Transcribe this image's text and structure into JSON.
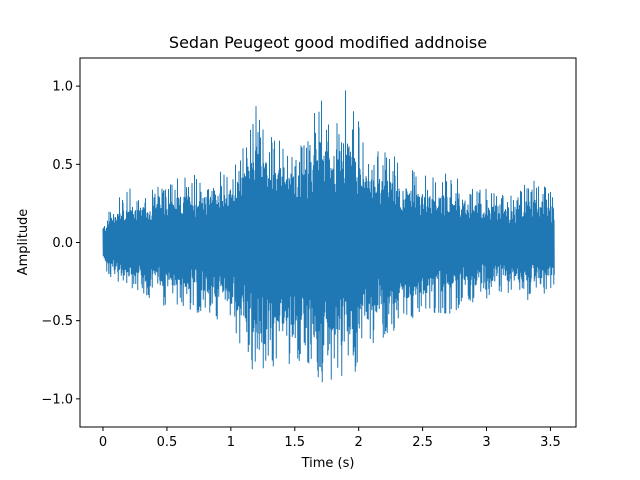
{
  "chart_data": {
    "type": "line",
    "title": "Sedan Peugeot good modified addnoise",
    "xlabel": "Time (s)",
    "ylabel": "Amplitude",
    "xlim": [
      -0.18,
      3.7
    ],
    "ylim": [
      -1.18,
      1.18
    ],
    "x_ticks": [
      0,
      0.5,
      1,
      1.5,
      2,
      2.5,
      3,
      3.5
    ],
    "x_tick_labels": [
      "0",
      "0.5",
      "1",
      "1.5",
      "2",
      "2.5",
      "3",
      "3.5"
    ],
    "y_ticks": [
      -1.0,
      -0.5,
      0.0,
      0.5,
      1.0
    ],
    "y_tick_labels": [
      "−1.0",
      "−0.5",
      "0.0",
      "0.5",
      "1.0"
    ],
    "grid": false,
    "legend": "none",
    "series": [
      {
        "color": "#1f77b4",
        "x_range": [
          0,
          3.53
        ],
        "envelope": {
          "x": [
            0,
            0.1,
            0.2,
            0.3,
            0.4,
            0.5,
            0.6,
            0.7,
            0.8,
            0.9,
            1.0,
            1.1,
            1.2,
            1.3,
            1.4,
            1.5,
            1.6,
            1.7,
            1.75,
            1.8,
            1.9,
            2.0,
            2.1,
            2.2,
            2.3,
            2.4,
            2.5,
            2.6,
            2.7,
            2.8,
            2.9,
            3.0,
            3.1,
            3.2,
            3.3,
            3.4,
            3.53
          ],
          "upper": [
            0.15,
            0.3,
            0.35,
            0.32,
            0.35,
            0.38,
            0.42,
            0.45,
            0.42,
            0.45,
            0.5,
            0.62,
            0.92,
            0.68,
            0.7,
            0.62,
            0.7,
            0.95,
            1.07,
            0.82,
            0.98,
            0.78,
            0.62,
            0.58,
            0.55,
            0.48,
            0.45,
            0.42,
            0.45,
            0.4,
            0.38,
            0.35,
            0.36,
            0.32,
            0.38,
            0.4,
            0.32
          ],
          "lower": [
            -0.15,
            -0.3,
            -0.32,
            -0.35,
            -0.38,
            -0.42,
            -0.4,
            -0.45,
            -0.48,
            -0.5,
            -0.58,
            -0.7,
            -0.9,
            -0.78,
            -0.82,
            -0.75,
            -0.8,
            -0.95,
            -1.08,
            -0.85,
            -1.0,
            -0.8,
            -0.68,
            -0.62,
            -0.55,
            -0.5,
            -0.48,
            -0.45,
            -0.46,
            -0.42,
            -0.4,
            -0.38,
            -0.35,
            -0.36,
            -0.38,
            -0.35,
            -0.3
          ]
        }
      }
    ]
  }
}
